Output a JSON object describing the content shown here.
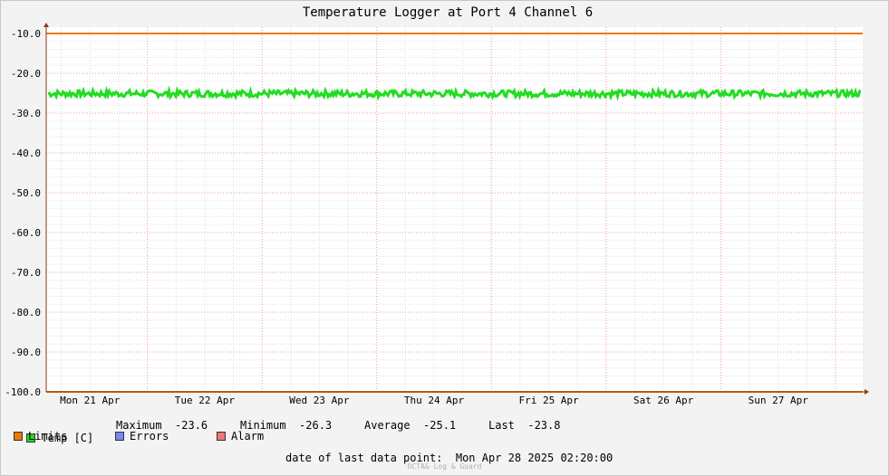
{
  "chart_data": {
    "type": "line",
    "title": "Temperature Logger at Port 4 Channel 6",
    "ylim": [
      -100,
      -10
    ],
    "yticks": [
      "-10.0",
      "-20.0",
      "-30.0",
      "-40.0",
      "-50.0",
      "-60.0",
      "-70.0",
      "-80.0",
      "-90.0",
      "-100.0"
    ],
    "xticks": [
      "Mon 21 Apr",
      "Tue 22 Apr",
      "Wed 23 Apr",
      "Thu 24 Apr",
      "Fri 25 Apr",
      "Sat 26 Apr",
      "Sun 27 Apr"
    ],
    "series": [
      {
        "name": "Temp [C]",
        "color": "#22dd22",
        "base": -25.1,
        "min": -26.3,
        "max": -23.6,
        "last": -23.8
      },
      {
        "name": "Limits",
        "color": "#ee7700",
        "values": [
          -10,
          -100
        ]
      }
    ],
    "grid": true
  },
  "legend": {
    "temp": {
      "label": "Temp [C]",
      "color": "#22dd22"
    },
    "limits": {
      "label": "Limits",
      "color": "#ee7700"
    },
    "errors": {
      "label": "Errors",
      "color": "#7788ee"
    },
    "alarm": {
      "label": "Alarm",
      "color": "#ee7777"
    },
    "stats": {
      "max_label": "Maximum",
      "max": "-23.6",
      "min_label": "Minimum",
      "min": "-26.3",
      "avg_label": "Average",
      "avg": "-25.1",
      "last_label": "Last",
      "last": "-23.8"
    }
  },
  "footer": {
    "label": "date of last data point:",
    "value": "Mon Apr 28 2025 02:20:00",
    "credit": "OCTA& Log & Guard"
  }
}
